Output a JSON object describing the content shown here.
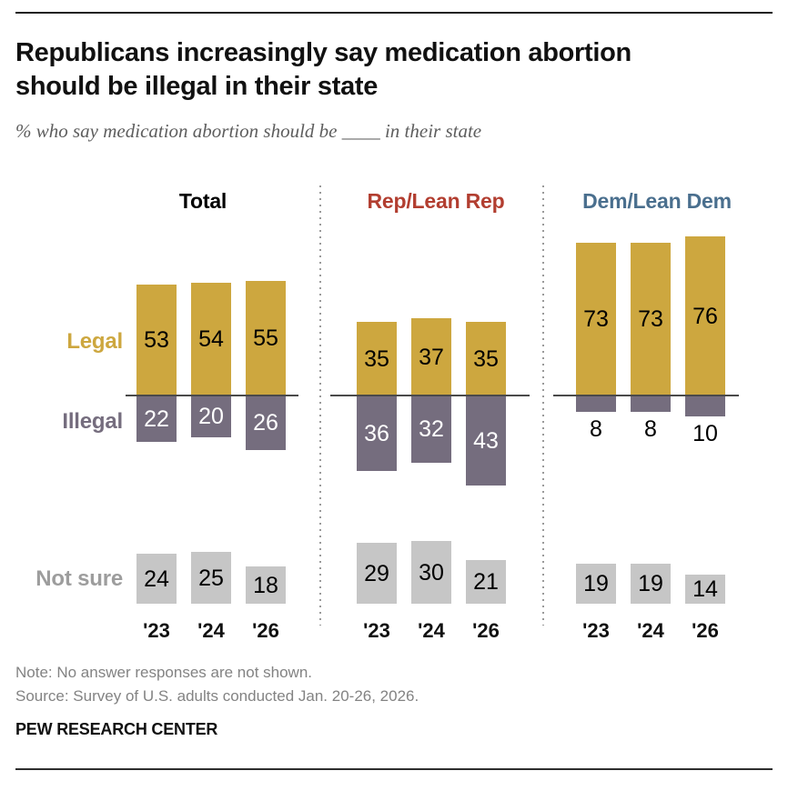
{
  "header": {
    "title_line1": "Republicans increasingly say medication abortion",
    "title_line2": "should be illegal in their state",
    "subtitle": "% who say medication abortion should be ____ in their state"
  },
  "chart_data": {
    "type": "bar",
    "title": "Republicans increasingly say medication abortion should be illegal in their state",
    "categories": [
      "'23",
      "'24",
      "'26"
    ],
    "row_labels": {
      "legal": "Legal",
      "illegal": "Illegal",
      "not_sure": "Not sure"
    },
    "groups": [
      {
        "name": "Total",
        "header_color": "#000000",
        "series": {
          "legal": [
            53,
            54,
            55
          ],
          "illegal": [
            22,
            20,
            26
          ],
          "not_sure": [
            24,
            25,
            18
          ]
        }
      },
      {
        "name": "Rep/Lean Rep",
        "header_color": "#B23E30",
        "series": {
          "legal": [
            35,
            37,
            35
          ],
          "illegal": [
            36,
            32,
            43
          ],
          "not_sure": [
            29,
            30,
            21
          ]
        }
      },
      {
        "name": "Dem/Lean Dem",
        "header_color": "#4A6F8E",
        "series": {
          "legal": [
            73,
            73,
            76
          ],
          "illegal": [
            8,
            8,
            10
          ],
          "not_sure": [
            19,
            19,
            14
          ]
        }
      }
    ],
    "colors": {
      "legal": "#CDA73F",
      "illegal": "#756D7E",
      "not_sure": "#C6C6C6",
      "legal_label": "#CDA73F",
      "illegal_label": "#756D7E",
      "not_sure_label": "#9D9D9D",
      "value_text_dark": "#000000",
      "value_text_light": "#FFFFFF"
    },
    "layout_hint": "diverging bars above/below a shared zero line per party group; separate not-sure row below; no gridlines; value labels on bars; small illegal bars labeled beneath"
  },
  "footer": {
    "note": "Note: No answer responses are not shown.",
    "source": "Source: Survey of U.S. adults conducted Jan. 20-26, 2026.",
    "brand": "PEW RESEARCH CENTER"
  }
}
